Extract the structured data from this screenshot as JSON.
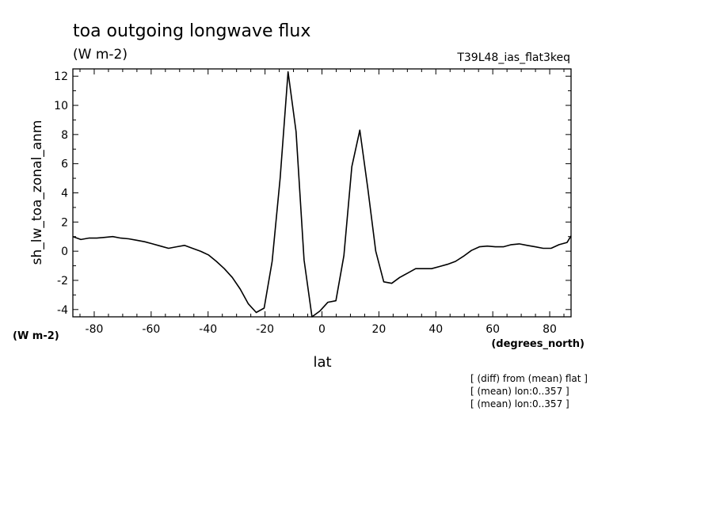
{
  "chart_data": {
    "type": "line",
    "title": "toa outgoing longwave flux",
    "units": "(W m-2)",
    "run_label": "T39L48_ias_flat3keq",
    "xlabel": "lat",
    "x_units": "(degrees_north)",
    "ylabel": "sh_lw_toa_zonal_anm",
    "y_units": "(W m-2)",
    "xlim": [
      -87.5,
      87.5
    ],
    "ylim": [
      -4.5,
      12.5
    ],
    "x_ticks": [
      -80,
      -60,
      -40,
      -20,
      0,
      20,
      40,
      60,
      80
    ],
    "y_ticks": [
      -4,
      -2,
      0,
      2,
      4,
      6,
      8,
      10,
      12
    ],
    "notes": [
      "[ (diff) from (mean) flat ]",
      "[ (mean) lon:0..357 ]",
      "[ (mean) lon:0..357 ]"
    ],
    "grid": false,
    "series": [
      {
        "x": [
          -87.5,
          -84.7,
          -81.9,
          -79.1,
          -76.3,
          -73.5,
          -70.7,
          -67.9,
          -65.1,
          -62.3,
          -59.5,
          -56.7,
          -53.9,
          -51.1,
          -48.3,
          -45.5,
          -42.7,
          -39.9,
          -37.1,
          -34.3,
          -31.5,
          -28.7,
          -25.9,
          -23.1,
          -20.3,
          -17.5,
          -14.7,
          -11.9,
          -9.1,
          -6.3,
          -3.5,
          -0.7,
          2.1,
          4.9,
          7.7,
          10.5,
          13.3,
          16.1,
          18.9,
          21.7,
          24.5,
          27.3,
          30.1,
          32.9,
          35.7,
          38.5,
          41.3,
          44.1,
          46.9,
          49.7,
          52.5,
          55.3,
          58.1,
          60.9,
          63.7,
          66.5,
          69.3,
          72.1,
          74.9,
          77.7,
          80.5,
          83.3,
          86.1,
          87.5
        ],
        "y": [
          1.0,
          0.8,
          0.9,
          0.9,
          0.95,
          1.0,
          0.9,
          0.85,
          0.75,
          0.65,
          0.5,
          0.35,
          0.2,
          0.3,
          0.4,
          0.2,
          0.0,
          -0.25,
          -0.7,
          -1.2,
          -1.8,
          -2.6,
          -3.6,
          -4.2,
          -3.9,
          -0.7,
          5.0,
          12.3,
          8.2,
          -0.6,
          -4.5,
          -4.1,
          -3.5,
          -3.4,
          -0.3,
          5.8,
          8.3,
          4.3,
          0.0,
          -2.1,
          -2.2,
          -1.8,
          -1.5,
          -1.2,
          -1.2,
          -1.2,
          -1.05,
          -0.9,
          -0.7,
          -0.35,
          0.05,
          0.3,
          0.35,
          0.3,
          0.3,
          0.45,
          0.5,
          0.4,
          0.3,
          0.2,
          0.2,
          0.45,
          0.6,
          1.05
        ]
      }
    ]
  }
}
